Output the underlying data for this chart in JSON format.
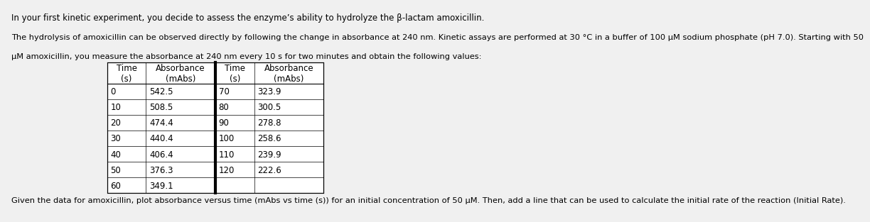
{
  "title_line1": "In your first kinetic experiment, you decide to assess the enzyme’s ability to hydrolyze the β-lactam amoxicillin.",
  "paragraph_line1": "The hydrolysis of amoxicillin can be observed directly by following the change in absorbance at 240 nm. Kinetic assays are performed at 30 °C in a buffer of 100 μM sodium phosphate (pH 7.0). Starting with 50",
  "paragraph_line2": "μM amoxicillin, you measure the absorbance at 240 nm every 10 s for two minutes and obtain the following values:",
  "footer": "Given the data for amoxicillin, plot absorbance versus time (mAbs vs time (s)) for an initial concentration of 50 μM. Then, add a line that can be used to calculate the initial rate of the reaction (Initial Rate).",
  "col_headers": [
    "Time\n(s)",
    "Absorbance\n(mAbs)",
    "Time\n(s)",
    "Absorbance\n(mAbs)"
  ],
  "time_left": [
    0,
    10,
    20,
    30,
    40,
    50,
    60
  ],
  "abs_left": [
    542.5,
    508.5,
    474.4,
    440.4,
    406.4,
    376.3,
    349.1
  ],
  "time_right": [
    70,
    80,
    90,
    100,
    110,
    120
  ],
  "abs_right": [
    323.9,
    300.5,
    278.8,
    258.6,
    239.9,
    222.6
  ],
  "background_color": "#f0f0f0",
  "font_size_title": 8.5,
  "font_size_para": 8.2,
  "font_size_footer": 8.2,
  "font_size_table": 8.5
}
